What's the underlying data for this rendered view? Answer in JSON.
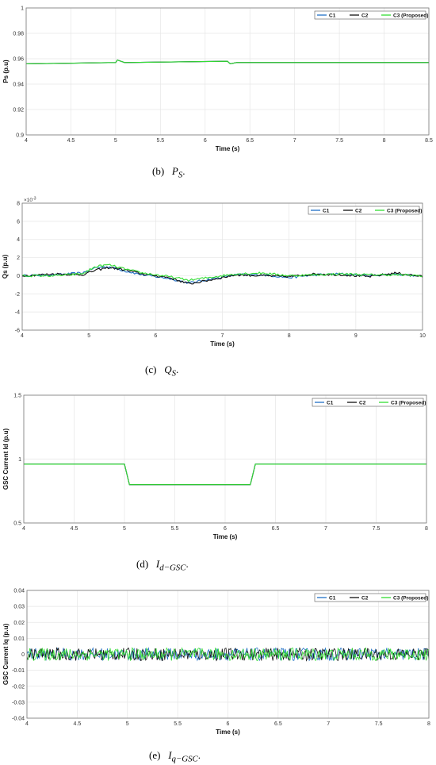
{
  "colors": {
    "c1": "#1f6fc5",
    "c2": "#111111",
    "c3": "#33dd33",
    "grid": "#e6e6e6",
    "frame": "#777777"
  },
  "chart_data": [
    {
      "type": "line",
      "xlabel": "Time (s)",
      "ylabel": "Ps (p.u)",
      "xlim": [
        4,
        8.5
      ],
      "ylim": [
        0.9,
        1
      ],
      "xticks": [
        "4",
        "4.5",
        "5",
        "5.5",
        "6",
        "6.5",
        "7",
        "7.5",
        "8",
        "8.5"
      ],
      "yticks": [
        "0.9",
        "0.92",
        "0.94",
        "0.96",
        "0.98",
        "1"
      ],
      "grid": true,
      "legend_position": "top-right",
      "series": [
        {
          "name": "C1",
          "x": [
            4,
            5,
            5.02,
            5.1,
            6.25,
            6.28,
            6.35,
            8.5
          ],
          "y": [
            0.956,
            0.957,
            0.959,
            0.957,
            0.958,
            0.956,
            0.957,
            0.957
          ]
        },
        {
          "name": "C2",
          "x": [
            4,
            5,
            5.02,
            5.1,
            6.25,
            6.28,
            6.35,
            8.5
          ],
          "y": [
            0.956,
            0.957,
            0.959,
            0.957,
            0.958,
            0.956,
            0.957,
            0.957
          ]
        },
        {
          "name": "C3 (Proposed)",
          "x": [
            4,
            5,
            5.02,
            5.1,
            6.25,
            6.28,
            6.35,
            8.5
          ],
          "y": [
            0.956,
            0.957,
            0.959,
            0.957,
            0.958,
            0.956,
            0.957,
            0.957
          ]
        }
      ],
      "caption": {
        "label": "(b)",
        "symbol": "P",
        "sub": "S"
      }
    },
    {
      "type": "line",
      "xlabel": "Time (s)",
      "ylabel": "Qs (p.u)",
      "exponent": "×10",
      "exponent_power": "-3",
      "xlim": [
        4,
        10
      ],
      "ylim": [
        -6,
        8
      ],
      "xticks": [
        "4",
        "5",
        "6",
        "7",
        "8",
        "9",
        "10"
      ],
      "yticks": [
        "-6",
        "-4",
        "-2",
        "0",
        "2",
        "4",
        "6",
        "8"
      ],
      "grid": true,
      "legend_position": "top-right",
      "series": [
        {
          "name": "C1",
          "x": [
            4,
            4.5,
            4.9,
            5.1,
            5.3,
            5.5,
            5.8,
            6.2,
            6.5,
            6.8,
            7.2,
            7.6,
            8,
            8.4,
            8.8,
            9.2,
            9.6,
            10
          ],
          "y": [
            0,
            0.1,
            0.3,
            0.9,
            1.0,
            0.6,
            0.1,
            -0.3,
            -0.8,
            -0.4,
            0.1,
            0.1,
            -0.2,
            0.1,
            0.2,
            0,
            0.2,
            -0.1
          ]
        },
        {
          "name": "C2",
          "x": [
            4,
            4.5,
            4.9,
            5.1,
            5.3,
            5.5,
            5.8,
            6.2,
            6.5,
            6.8,
            7.2,
            7.6,
            8,
            8.4,
            8.8,
            9.2,
            9.6,
            10
          ],
          "y": [
            0,
            0.2,
            0.1,
            0.6,
            0.9,
            0.7,
            0.2,
            -0.2,
            -0.9,
            -0.5,
            0.1,
            0,
            -0.1,
            0.2,
            0.1,
            -0.1,
            0.3,
            -0.1
          ]
        },
        {
          "name": "C3 (Proposed)",
          "x": [
            4,
            4.5,
            4.9,
            5.1,
            5.3,
            5.5,
            5.8,
            6.2,
            6.5,
            6.8,
            7.2,
            7.6,
            8,
            8.4,
            8.8,
            9.2,
            9.6,
            10
          ],
          "y": [
            0,
            0,
            0.2,
            1.0,
            1.2,
            0.8,
            0.3,
            -0.1,
            -0.5,
            -0.2,
            0.2,
            0.3,
            0,
            0.1,
            0.2,
            0.1,
            0.1,
            0
          ]
        }
      ],
      "caption": {
        "label": "(c)",
        "symbol": "Q",
        "sub": "S"
      }
    },
    {
      "type": "line",
      "xlabel": "Time (s)",
      "ylabel": "GSC Current Id (p.u)",
      "xlim": [
        4,
        8
      ],
      "ylim": [
        0.5,
        1.5
      ],
      "xticks": [
        "4",
        "4.5",
        "5",
        "5.5",
        "6",
        "6.5",
        "7",
        "7.5",
        "8"
      ],
      "yticks": [
        "0.5",
        "1",
        "1.5"
      ],
      "grid": true,
      "legend_position": "top-right",
      "series": [
        {
          "name": "C1",
          "x": [
            4,
            5,
            5.05,
            6.25,
            6.3,
            8
          ],
          "y": [
            0.96,
            0.96,
            0.8,
            0.8,
            0.96,
            0.96
          ]
        },
        {
          "name": "C2",
          "x": [
            4,
            5,
            5.05,
            6.25,
            6.3,
            8
          ],
          "y": [
            0.96,
            0.96,
            0.8,
            0.8,
            0.96,
            0.96
          ]
        },
        {
          "name": "C3 (Proposed)",
          "x": [
            4,
            5,
            5.05,
            6.25,
            6.3,
            8
          ],
          "y": [
            0.96,
            0.96,
            0.8,
            0.8,
            0.96,
            0.96
          ]
        }
      ],
      "caption": {
        "label": "(d)",
        "symbol": "I",
        "sub": "d−GSC"
      }
    },
    {
      "type": "line",
      "xlabel": "Time (s)",
      "ylabel": "GSC Current Iq (p.u)",
      "xlim": [
        4,
        8
      ],
      "ylim": [
        -0.04,
        0.04
      ],
      "xticks": [
        "4",
        "4.5",
        "5",
        "5.5",
        "6",
        "6.5",
        "7",
        "7.5",
        "8"
      ],
      "yticks": [
        "-0.04",
        "-0.03",
        "-0.02",
        "-0.01",
        "0",
        "0.01",
        "0.02",
        "0.03",
        "0.04"
      ],
      "grid": true,
      "legend_position": "top-right",
      "series": [
        {
          "name": "C1",
          "x": [
            4,
            4.5,
            5,
            5.5,
            6,
            6.5,
            7,
            7.5,
            8
          ],
          "y": [
            0,
            0,
            0,
            0,
            0,
            0,
            0,
            0,
            0
          ],
          "noise": 0.004
        },
        {
          "name": "C2",
          "x": [
            4,
            4.5,
            5,
            5.5,
            6,
            6.5,
            7,
            7.5,
            8
          ],
          "y": [
            0,
            0,
            0,
            0,
            0,
            0,
            0,
            0,
            0
          ],
          "noise": 0.004
        },
        {
          "name": "C3 (Proposed)",
          "x": [
            4,
            4.5,
            5,
            5.5,
            6,
            6.5,
            7,
            7.5,
            8
          ],
          "y": [
            0,
            0,
            0,
            0,
            0,
            0,
            0,
            0,
            0
          ],
          "noise": 0.004
        }
      ],
      "caption": {
        "label": "(e)",
        "symbol": "I",
        "sub": "q−GSC"
      }
    }
  ]
}
